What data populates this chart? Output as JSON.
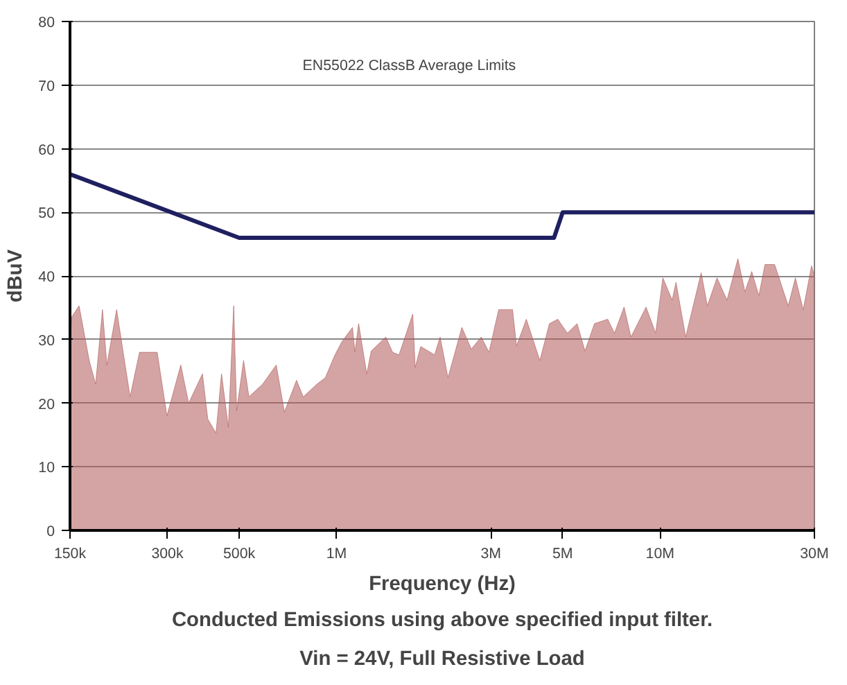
{
  "chart_data": {
    "type": "area",
    "xlabel": "Frequency (Hz)",
    "ylabel": "dBuV",
    "annotations": [
      "EN55022 ClassB Average Limits",
      "Conducted Emissions using above specified input filter.",
      "Vin = 24V, Full Resistive Load"
    ],
    "log": "x",
    "grid": "y",
    "xlim": [
      150000,
      30000000
    ],
    "ylim": [
      0,
      80
    ],
    "xticks": [
      {
        "value": 150000,
        "label": "150k"
      },
      {
        "value": 300000,
        "label": "300k"
      },
      {
        "value": 500000,
        "label": "500k"
      },
      {
        "value": 1000000,
        "label": "1M"
      },
      {
        "value": 3000000,
        "label": "3M"
      },
      {
        "value": 5000000,
        "label": "5M"
      },
      {
        "value": 10000000,
        "label": "10M"
      },
      {
        "value": 30000000,
        "label": "30M"
      }
    ],
    "yticks": [
      0,
      10,
      20,
      30,
      40,
      50,
      60,
      70,
      80
    ],
    "series": [
      {
        "color": "#b05a5a",
        "x": [
          150000,
          152000,
          160000,
          172000,
          180000,
          189000,
          195000,
          209000,
          230000,
          246000,
          279000,
          299000,
          330000,
          349000,
          385000,
          400000,
          424000,
          441000,
          463000,
          481000,
          491000,
          516000,
          536000,
          591000,
          651000,
          690000,
          752000,
          789000,
          870000,
          923000,
          989000,
          1040000,
          1120000,
          1140000,
          1170000,
          1240000,
          1280000,
          1420000,
          1490000,
          1560000,
          1720000,
          1750000,
          1820000,
          2010000,
          2090000,
          2210000,
          2440000,
          2610000,
          2800000,
          2960000,
          3170000,
          3500000,
          3600000,
          3860000,
          4250000,
          4550000,
          4830000,
          5170000,
          5540000,
          5860000,
          6270000,
          6890000,
          7230000,
          7740000,
          8130000,
          9050000,
          9690000,
          10200000,
          10900000,
          11200000,
          12000000,
          13400000,
          14000000,
          15000000,
          16100000,
          17400000,
          18300000,
          19200000,
          20200000,
          21100000,
          22600000,
          24900000,
          26200000,
          27700000,
          29400000,
          30000000
        ],
        "values": [
          30,
          33.6,
          35.3,
          26.7,
          23,
          34.7,
          26,
          34.7,
          21,
          28,
          28,
          18,
          26,
          20,
          24.6,
          17.5,
          15.3,
          24.6,
          16.2,
          35.3,
          18.8,
          26.7,
          21,
          23,
          26,
          18.6,
          23.6,
          21,
          23,
          24,
          27.6,
          29.7,
          31.9,
          28,
          32.5,
          24.6,
          28.2,
          30.4,
          28,
          27.6,
          34,
          25.6,
          28.9,
          27.6,
          30.4,
          24,
          31.9,
          28.5,
          30.4,
          28,
          34.7,
          34.7,
          29,
          33.2,
          26.7,
          32.5,
          33.2,
          31,
          32.5,
          28.2,
          32.5,
          33.2,
          31,
          35.1,
          30.4,
          35.1,
          31,
          39.7,
          36.2,
          39,
          30.4,
          40.5,
          35.3,
          39.7,
          36.2,
          42.7,
          37.5,
          40.7,
          36.9,
          41.8,
          41.8,
          35.3,
          39.7,
          34.7,
          41.6,
          40
        ]
      },
      {
        "type": "line",
        "color": "#1f2060",
        "x": [
          150000,
          500000,
          4700000,
          5000000,
          30000000
        ],
        "values": [
          56,
          46,
          46,
          50,
          50
        ]
      }
    ]
  }
}
